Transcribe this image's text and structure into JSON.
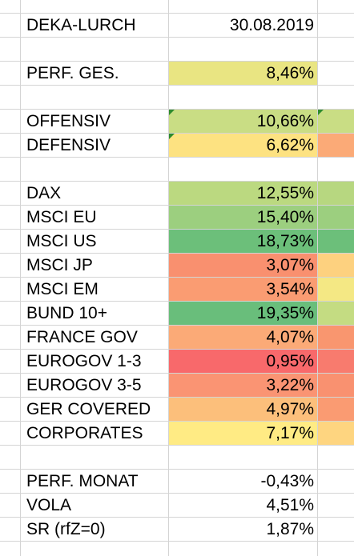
{
  "header": {
    "name": "DEKA-LURCH",
    "date": "30.08.2019"
  },
  "rows": [
    {
      "label": "DEKA-LURCH",
      "value": "30.08.2019",
      "color": "",
      "cColor": ""
    },
    {
      "label": "",
      "value": "",
      "color": "",
      "cColor": ""
    },
    {
      "label": "PERF. GES.",
      "value": "8,46%",
      "color": "#e9e582",
      "cColor": ""
    },
    {
      "label": "",
      "value": "",
      "color": "",
      "cColor": ""
    },
    {
      "label": "OFFENSIV",
      "value": "10,66%",
      "color": "#c9dd84",
      "cColor": "#c9dd84",
      "flag": true
    },
    {
      "label": "DEFENSIV",
      "value": "6,62%",
      "color": "#fde281",
      "cColor": "#fbaa77",
      "flag": true
    },
    {
      "label": "",
      "value": "",
      "color": "",
      "cColor": ""
    },
    {
      "label": "DAX",
      "value": "12,55%",
      "color": "#bbd980",
      "cColor": "#b7d780"
    },
    {
      "label": "MSCI EU",
      "value": "15,40%",
      "color": "#9ccf7f",
      "cColor": "#9ccf7f"
    },
    {
      "label": "MSCI US",
      "value": "18,73%",
      "color": "#6cbf7a",
      "cColor": "#6cbf7a"
    },
    {
      "label": "MSCI JP",
      "value": "3,07%",
      "color": "#f9906f",
      "cColor": "#fdd17f"
    },
    {
      "label": "MSCI EM",
      "value": "3,54%",
      "color": "#fa9c72",
      "cColor": "#f4e884"
    },
    {
      "label": "BUND 10+",
      "value": "19,35%",
      "color": "#69be7b",
      "cColor": "#c4dc82"
    },
    {
      "label": "FRANCE GOV",
      "value": "4,07%",
      "color": "#fbaa77",
      "cColor": "#f9966f"
    },
    {
      "label": "EUROGOV 1-3",
      "value": "0,95%",
      "color": "#f8696b",
      "cColor": "#f87b6e"
    },
    {
      "label": "EUROGOV 3-5",
      "value": "3,22%",
      "color": "#fa9473",
      "cColor": "#f99170"
    },
    {
      "label": "GER COVERED",
      "value": "4,97%",
      "color": "#fcbf7b",
      "cColor": "#fa9b72"
    },
    {
      "label": "CORPORATES",
      "value": "7,17%",
      "color": "#ffeb84",
      "cColor": "#fed580"
    },
    {
      "label": "",
      "value": "",
      "color": "",
      "cColor": ""
    },
    {
      "label": "PERF. MONAT",
      "value": "-0,43%",
      "color": "",
      "cColor": ""
    },
    {
      "label": "VOLA",
      "value": "4,51%",
      "color": "",
      "cColor": ""
    },
    {
      "label": "SR (rfZ=0)",
      "value": "1,87%",
      "color": "",
      "cColor": ""
    }
  ]
}
